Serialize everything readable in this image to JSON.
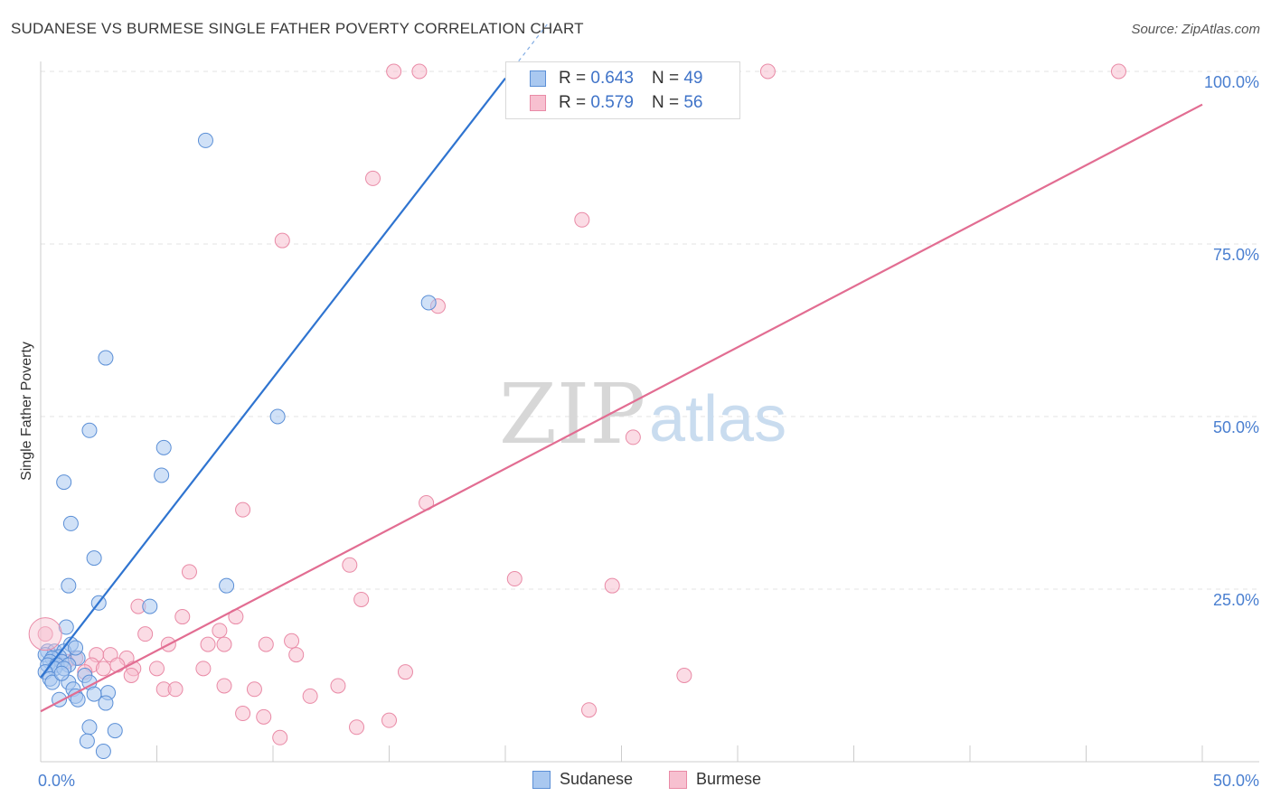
{
  "title": "SUDANESE VS BURMESE SINGLE FATHER POVERTY CORRELATION CHART",
  "source": "Source: ZipAtlas.com",
  "watermark": {
    "zip": "ZIP",
    "atlas": "atlas"
  },
  "legend": {
    "rows": [
      {
        "r_label": "R =",
        "r_value": "0.643",
        "n_label": "N =",
        "n_value": "49"
      },
      {
        "r_label": "R =",
        "r_value": "0.579",
        "n_label": "N =",
        "n_value": "56"
      }
    ]
  },
  "bottom_legend": {
    "series1": "Sudanese",
    "series2": "Burmese"
  },
  "colors": {
    "sudanese_fill": "#a9c8f0",
    "sudanese_stroke": "#5b8fd6",
    "sudanese_line": "#2f74d0",
    "burmese_fill": "#f7c0d0",
    "burmese_stroke": "#e98aa6",
    "burmese_line": "#e26d92",
    "tick": "#4a7fd0",
    "grid": "#e3e3e3"
  },
  "chart_data": {
    "type": "scatter",
    "title": "SUDANESE VS BURMESE SINGLE FATHER POVERTY CORRELATION CHART",
    "xlabel": "",
    "ylabel": "Single Father Poverty",
    "xlim": [
      0,
      50
    ],
    "ylim": [
      0,
      102
    ],
    "x_tick_labels": [
      "0.0%",
      "50.0%"
    ],
    "y_ticks": [
      25,
      50,
      75,
      100
    ],
    "y_tick_labels": [
      "25.0%",
      "50.0%",
      "75.0%",
      "100.0%"
    ],
    "grid": true,
    "legend": "top-center",
    "series": [
      {
        "name": "Sudanese",
        "points": [
          [
            7.1,
            90
          ],
          [
            2.8,
            58.5
          ],
          [
            2.1,
            48
          ],
          [
            5.3,
            45.5
          ],
          [
            5.2,
            41.5
          ],
          [
            1.0,
            40.5
          ],
          [
            1.3,
            34.5
          ],
          [
            2.3,
            29.5
          ],
          [
            1.2,
            25.5
          ],
          [
            8.0,
            25.5
          ],
          [
            2.5,
            23
          ],
          [
            4.7,
            22.5
          ],
          [
            1.1,
            19.5
          ],
          [
            1.3,
            17
          ],
          [
            0.3,
            16
          ],
          [
            0.6,
            16
          ],
          [
            1.0,
            16
          ],
          [
            0.2,
            15.5
          ],
          [
            0.8,
            15.2
          ],
          [
            0.5,
            15
          ],
          [
            1.6,
            15
          ],
          [
            0.4,
            14.5
          ],
          [
            0.9,
            14.5
          ],
          [
            0.3,
            14
          ],
          [
            0.7,
            14
          ],
          [
            1.2,
            14
          ],
          [
            0.6,
            13.5
          ],
          [
            1.0,
            13.5
          ],
          [
            0.2,
            13
          ],
          [
            1.9,
            12.5
          ],
          [
            0.4,
            12
          ],
          [
            0.5,
            11.5
          ],
          [
            1.2,
            11.5
          ],
          [
            2.1,
            11.5
          ],
          [
            1.4,
            10.5
          ],
          [
            2.9,
            10
          ],
          [
            1.5,
            9.5
          ],
          [
            0.8,
            9
          ],
          [
            1.6,
            9
          ],
          [
            2.8,
            8.5
          ],
          [
            2.1,
            5
          ],
          [
            3.2,
            4.5
          ],
          [
            2.0,
            3
          ],
          [
            2.7,
            1.5
          ],
          [
            10.2,
            50
          ],
          [
            16.7,
            66.5
          ],
          [
            1.5,
            16.5
          ],
          [
            0.9,
            12.8
          ],
          [
            2.3,
            9.8
          ]
        ],
        "trend": {
          "x": [
            0,
            20
          ],
          "y": [
            12.2,
            99
          ]
        }
      },
      {
        "name": "Burmese",
        "points": [
          [
            15.2,
            100
          ],
          [
            16.3,
            100
          ],
          [
            31.3,
            100
          ],
          [
            46.4,
            100
          ],
          [
            14.3,
            84.5
          ],
          [
            23.3,
            78.5
          ],
          [
            10.4,
            75.5
          ],
          [
            17.1,
            66
          ],
          [
            25.5,
            47
          ],
          [
            16.6,
            37.5
          ],
          [
            8.7,
            36.5
          ],
          [
            13.3,
            28.5
          ],
          [
            6.4,
            27.5
          ],
          [
            20.4,
            26.5
          ],
          [
            24.6,
            25.5
          ],
          [
            13.8,
            23.5
          ],
          [
            4.2,
            22.5
          ],
          [
            6.1,
            21
          ],
          [
            8.4,
            21
          ],
          [
            7.7,
            19
          ],
          [
            4.5,
            18.5
          ],
          [
            0.2,
            18.5
          ],
          [
            5.5,
            17
          ],
          [
            7.2,
            17
          ],
          [
            7.9,
            17
          ],
          [
            9.7,
            17
          ],
          [
            10.8,
            17.5
          ],
          [
            11.0,
            15.5
          ],
          [
            2.4,
            15.5
          ],
          [
            3.0,
            15.5
          ],
          [
            3.7,
            15
          ],
          [
            1.5,
            15
          ],
          [
            2.2,
            14
          ],
          [
            3.3,
            14
          ],
          [
            4.0,
            13.5
          ],
          [
            7.0,
            13.5
          ],
          [
            5.0,
            13.5
          ],
          [
            1.9,
            13
          ],
          [
            2.7,
            13.5
          ],
          [
            15.7,
            13
          ],
          [
            27.7,
            12.5
          ],
          [
            5.3,
            10.5
          ],
          [
            5.8,
            10.5
          ],
          [
            7.9,
            11
          ],
          [
            9.2,
            10.5
          ],
          [
            12.8,
            11
          ],
          [
            11.6,
            9.5
          ],
          [
            23.6,
            7.5
          ],
          [
            8.7,
            7
          ],
          [
            9.6,
            6.5
          ],
          [
            15.0,
            6
          ],
          [
            13.6,
            5
          ],
          [
            10.3,
            3.5
          ],
          [
            1.1,
            14.5
          ],
          [
            0.6,
            15.2
          ],
          [
            3.9,
            12.5
          ]
        ],
        "trend": {
          "x": [
            0,
            50
          ],
          "y": [
            7.3,
            95.2
          ]
        }
      }
    ]
  }
}
